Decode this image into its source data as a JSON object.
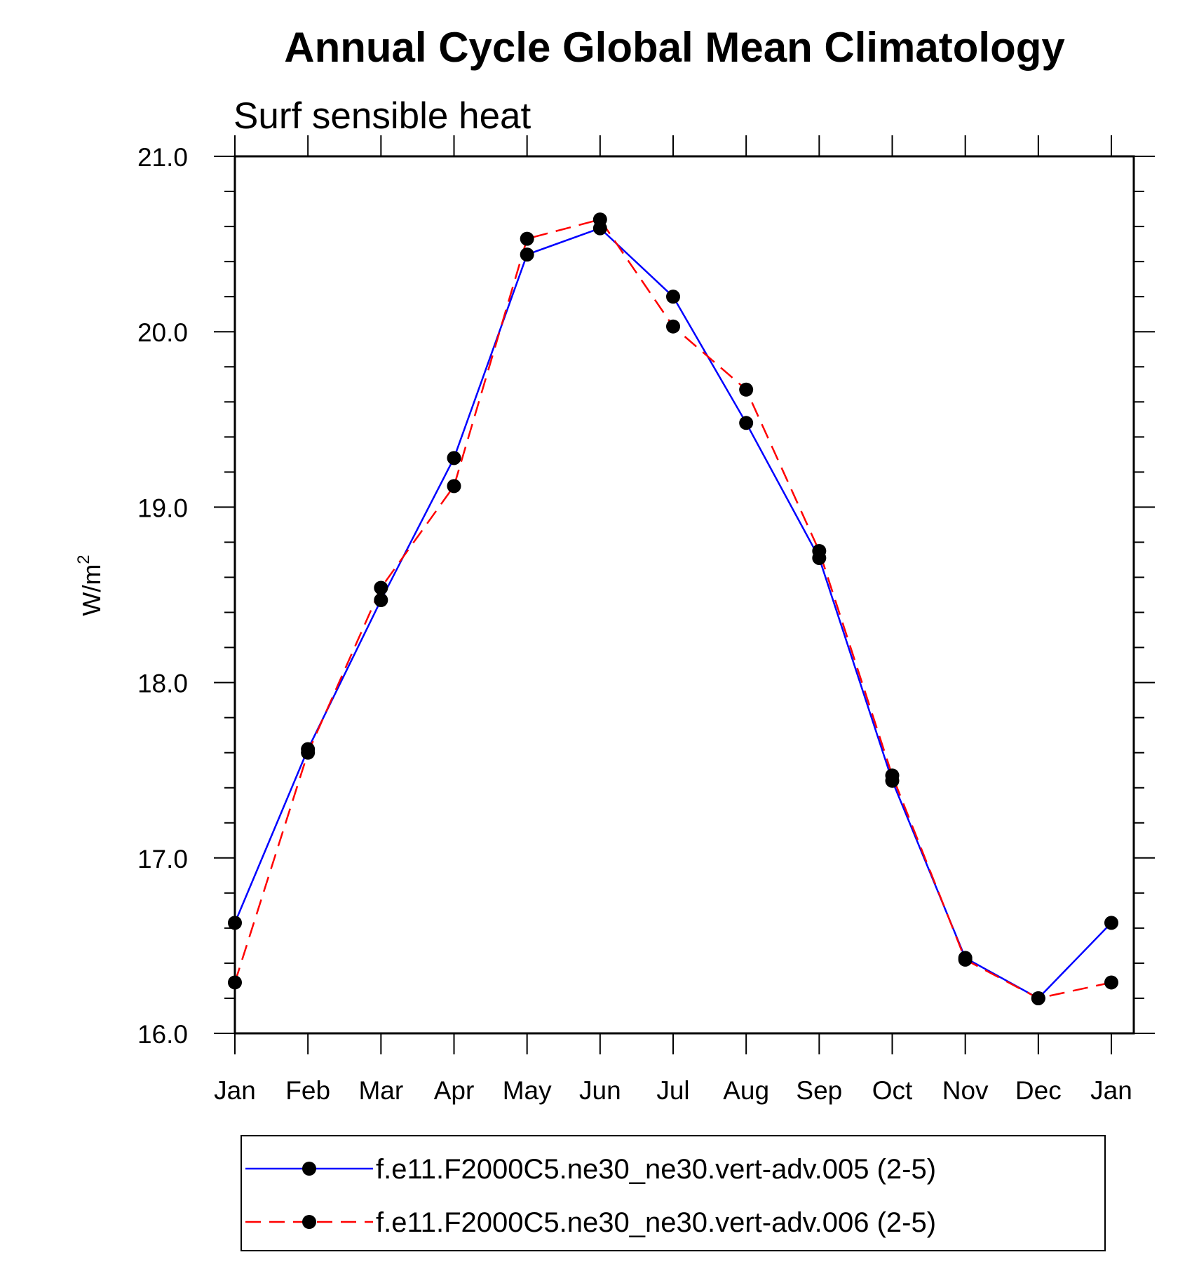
{
  "chart_data": {
    "type": "line",
    "title": "Annual Cycle Global Mean Climatology",
    "subtitle": "Surf sensible heat",
    "ylabel_main": "W/m",
    "ylabel_sup": "2",
    "categories": [
      "Jan",
      "Feb",
      "Mar",
      "Apr",
      "May",
      "Jun",
      "Jul",
      "Aug",
      "Sep",
      "Oct",
      "Nov",
      "Dec",
      "Jan"
    ],
    "ylim": [
      16.0,
      21.0
    ],
    "yticks": [
      "16.0",
      "17.0",
      "18.0",
      "19.0",
      "20.0",
      "21.0"
    ],
    "series": [
      {
        "name": "f.e11.F2000C5.ne30_ne30.vert-adv.005 (2-5)",
        "color": "#0000ff",
        "style": "solid",
        "values": [
          16.63,
          17.62,
          18.47,
          19.28,
          20.44,
          20.59,
          20.2,
          19.48,
          18.71,
          17.44,
          16.43,
          16.2,
          16.63
        ]
      },
      {
        "name": "f.e11.F2000C5.ne30_ne30.vert-adv.006 (2-5)",
        "color": "#ff0000",
        "style": "dashed",
        "values": [
          16.29,
          17.6,
          18.54,
          19.12,
          20.53,
          20.64,
          20.03,
          19.67,
          18.75,
          17.47,
          16.42,
          16.2,
          16.29
        ]
      }
    ],
    "grid": false,
    "legend_position": "bottom"
  }
}
